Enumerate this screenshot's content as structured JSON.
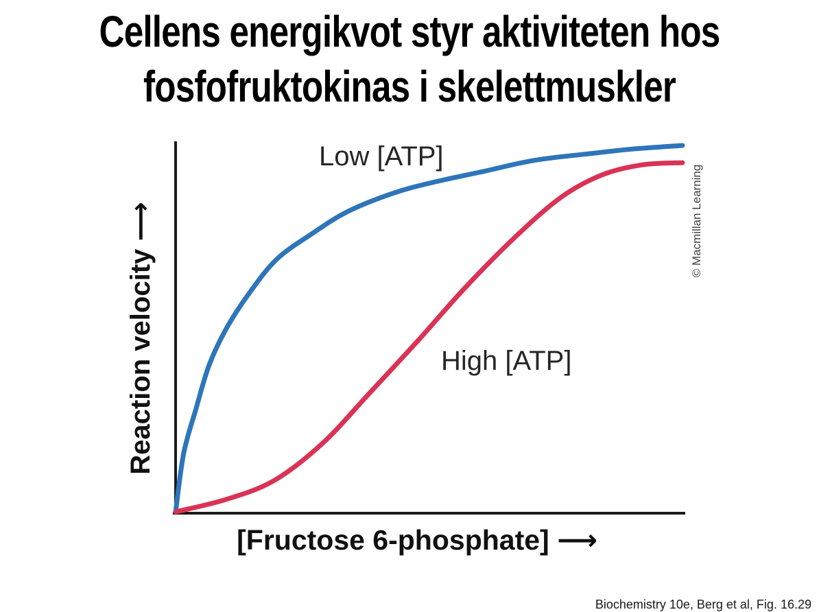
{
  "slide": {
    "title_line1": "Cellens energikvot styr aktiviteten hos",
    "title_line2": "fosfofruktokinas i skelettmuskler",
    "credit": "© Macmillan Learning",
    "citation": "Biochemistry 10e, Berg et al, Fig. 16.29"
  },
  "chart_data": {
    "type": "line",
    "title": "",
    "xlabel": "[Fructose 6-phosphate] ⟶",
    "ylabel": "Reaction velocity ⟶",
    "xlim": [
      0,
      1
    ],
    "ylim": [
      0,
      1
    ],
    "grid": false,
    "ticks": "none (qualitative axes)",
    "legend_position": "inline labels next to curves",
    "colors": {
      "axis": "#1C1C1C",
      "curve_low_atp": "#2E75B9",
      "curve_high_atp": "#D93355",
      "label_text": "#262626",
      "credit_text": "#404040"
    },
    "series": [
      {
        "name": "Low [ATP]",
        "color": "#2E75B9",
        "shape": "hyperbolic (Michaelis–Menten kinetics)",
        "points": [
          [
            0,
            0
          ],
          [
            0.016,
            0.16
          ],
          [
            0.04,
            0.28
          ],
          [
            0.066,
            0.4
          ],
          [
            0.1,
            0.5
          ],
          [
            0.147,
            0.6
          ],
          [
            0.2,
            0.69
          ],
          [
            0.27,
            0.76
          ],
          [
            0.34,
            0.82
          ],
          [
            0.43,
            0.87
          ],
          [
            0.51,
            0.9
          ],
          [
            0.61,
            0.93
          ],
          [
            0.71,
            0.96
          ],
          [
            0.82,
            0.978
          ],
          [
            0.9,
            0.99
          ],
          [
            1.0,
            1.0
          ]
        ]
      },
      {
        "name": "High [ATP]",
        "color": "#D93355",
        "shape": "sigmoidal (cooperative kinetics)",
        "points": [
          [
            0,
            0
          ],
          [
            0.1,
            0.034
          ],
          [
            0.195,
            0.086
          ],
          [
            0.29,
            0.187
          ],
          [
            0.38,
            0.32
          ],
          [
            0.48,
            0.47
          ],
          [
            0.57,
            0.61
          ],
          [
            0.67,
            0.75
          ],
          [
            0.76,
            0.858
          ],
          [
            0.84,
            0.919
          ],
          [
            0.92,
            0.947
          ],
          [
            1.0,
            0.953
          ]
        ]
      }
    ]
  }
}
